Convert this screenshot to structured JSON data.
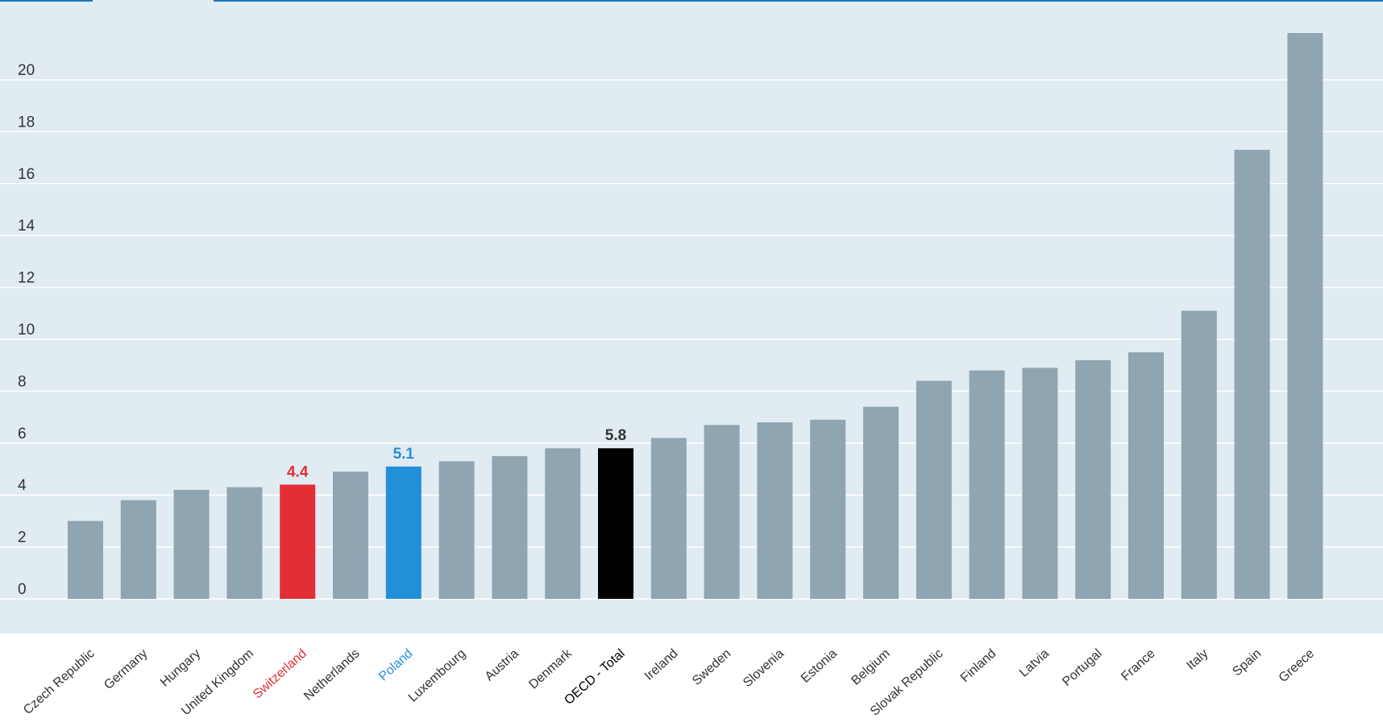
{
  "chart_data": {
    "type": "bar",
    "title": "",
    "xlabel": "",
    "ylabel": "",
    "ylim": [
      0,
      22
    ],
    "yticks": [
      0,
      2,
      4,
      6,
      8,
      10,
      12,
      14,
      16,
      18,
      20
    ],
    "grid": true,
    "categories": [
      "Czech Republic",
      "Germany",
      "Hungary",
      "United Kingdom",
      "Switzerland",
      "Netherlands",
      "Poland",
      "Luxembourg",
      "Austria",
      "Denmark",
      "OECD - Total",
      "Ireland",
      "Sweden",
      "Slovenia",
      "Estonia",
      "Belgium",
      "Slovak Republic",
      "Finland",
      "Latvia",
      "Portugal",
      "France",
      "Italy",
      "Spain",
      "Greece"
    ],
    "values": [
      3.0,
      3.8,
      4.2,
      4.3,
      4.4,
      4.9,
      5.1,
      5.3,
      5.5,
      5.8,
      5.8,
      6.2,
      6.7,
      6.8,
      6.9,
      7.4,
      8.4,
      8.8,
      8.9,
      9.2,
      9.5,
      11.1,
      17.3,
      21.8
    ],
    "highlights": [
      {
        "category": "Switzerland",
        "label": "4.4",
        "color": "#e32d37"
      },
      {
        "category": "Poland",
        "label": "5.1",
        "color": "#238fd9"
      },
      {
        "category": "OECD - Total",
        "label": "5.8",
        "color": "#000000"
      }
    ],
    "colors": {
      "default_bar": "#8fa5b2",
      "plot_background": "#e0ebf2",
      "gridline": "#ffffff",
      "tick_text": "#333333",
      "tab_accent": "#1b75bb"
    }
  }
}
